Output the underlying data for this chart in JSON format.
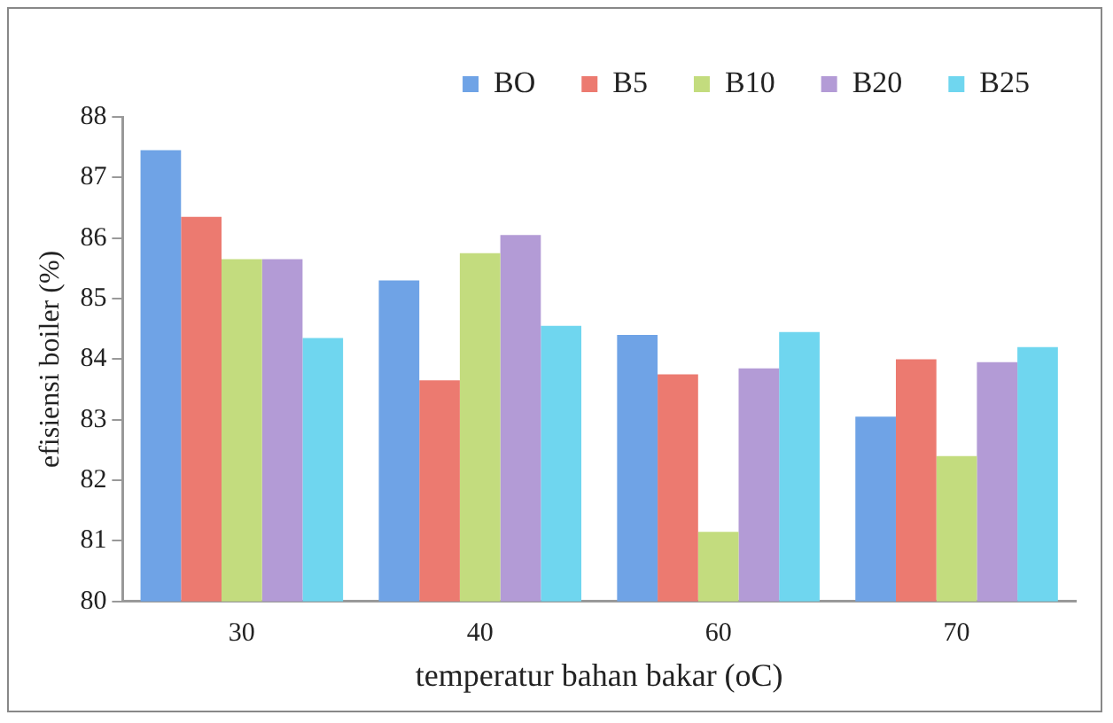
{
  "chart_data": {
    "type": "bar",
    "xlabel": "temperatur bahan bakar (oC)",
    "ylabel": "efisiensi boiler (%)",
    "categories": [
      "30",
      "40",
      "60",
      "70"
    ],
    "series": [
      {
        "name": "BO",
        "color": "#6fa3e6",
        "values": [
          87.45,
          85.3,
          84.4,
          83.05
        ]
      },
      {
        "name": "B5",
        "color": "#ec7a70",
        "values": [
          86.35,
          83.65,
          83.75,
          84.0
        ]
      },
      {
        "name": "B10",
        "color": "#c3dc7e",
        "values": [
          85.65,
          85.75,
          81.15,
          82.4
        ]
      },
      {
        "name": "B20",
        "color": "#b39bd6",
        "values": [
          85.65,
          86.05,
          83.85,
          83.95
        ]
      },
      {
        "name": "B25",
        "color": "#6fd6ef",
        "values": [
          84.35,
          84.55,
          84.45,
          84.2
        ]
      }
    ],
    "ylim": [
      80,
      88
    ],
    "yticks": [
      80,
      81,
      82,
      83,
      84,
      85,
      86,
      87,
      88
    ],
    "grid": false,
    "legend": "top"
  }
}
